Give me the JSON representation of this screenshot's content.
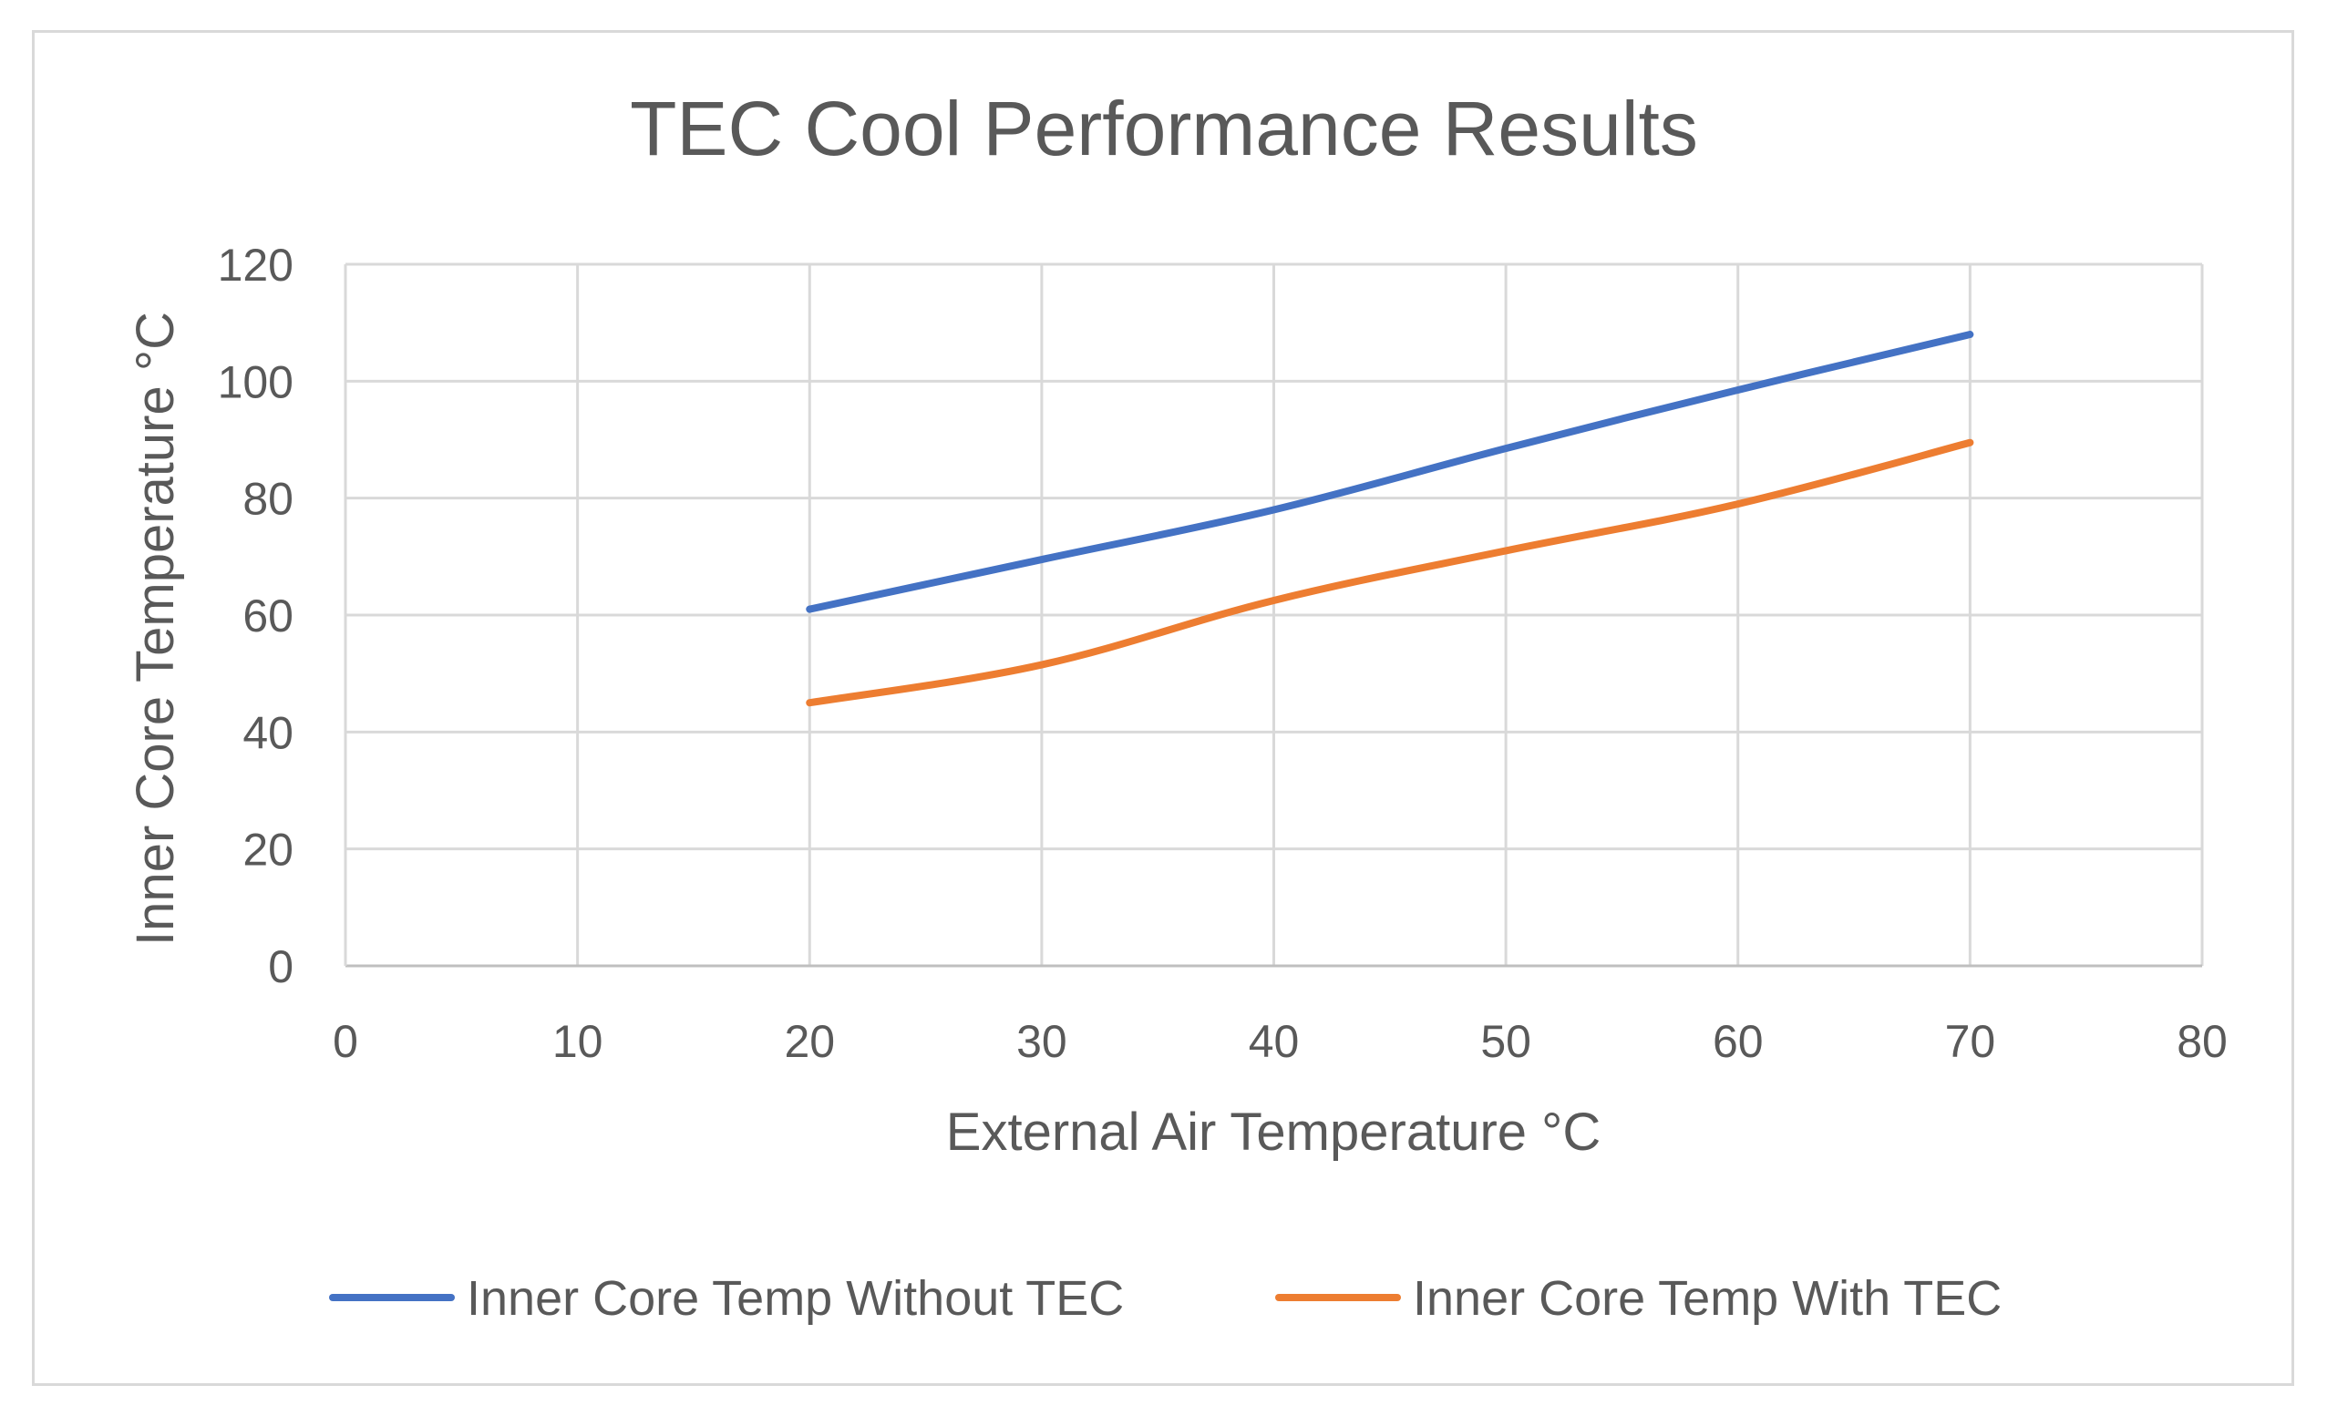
{
  "chart_data": {
    "type": "line",
    "title": "TEC Cool Performance Results",
    "xlabel": "External Air Temperature °C",
    "ylabel": "Inner Core Temperature °C",
    "xlim": [
      0,
      80
    ],
    "ylim": [
      0,
      120
    ],
    "x_ticks": [
      0,
      10,
      20,
      30,
      40,
      50,
      60,
      70,
      80
    ],
    "y_ticks": [
      0,
      20,
      40,
      60,
      80,
      100,
      120
    ],
    "x_tick_labels": [
      "0",
      "10",
      "20",
      "30",
      "40",
      "50",
      "60",
      "70",
      "80"
    ],
    "y_tick_labels": [
      "0",
      "20",
      "40",
      "60",
      "80",
      "100",
      "120"
    ],
    "grid": true,
    "legend_position": "bottom",
    "x": [
      20,
      30,
      40,
      50,
      60,
      70
    ],
    "series": [
      {
        "name": "Inner Core Temp Without TEC",
        "color": "#4472c4",
        "values": [
          61,
          69.5,
          78,
          88.5,
          98.5,
          108
        ]
      },
      {
        "name": "Inner Core Temp With TEC",
        "color": "#ed7d31",
        "values": [
          45,
          51.5,
          62.5,
          71,
          79,
          89.5
        ]
      }
    ]
  }
}
